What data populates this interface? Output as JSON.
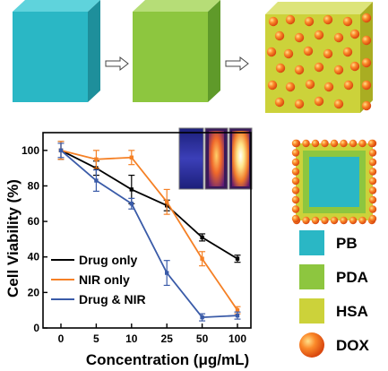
{
  "colors": {
    "pb": "#2ab7c5",
    "pda": "#8dc63f",
    "hsa": "#ccd23a",
    "dox": "#f26a1b",
    "drug_only": "#000000",
    "nir_only": "#f58025",
    "drug_nir": "#3a5ba8"
  },
  "legend_key": [
    {
      "label": "PB",
      "color": "#2ab7c5",
      "shape": "square"
    },
    {
      "label": "PDA",
      "color": "#8dc63f",
      "shape": "square"
    },
    {
      "label": "HSA",
      "color": "#ccd23a",
      "shape": "square"
    },
    {
      "label": "DOX",
      "color": "#f26a1b",
      "shape": "sphere"
    }
  ],
  "chart_data": {
    "type": "line",
    "xlabel": "Concentration (μg/mL)",
    "ylabel": "Cell Viability (%)",
    "categories": [
      "0",
      "5",
      "10",
      "25",
      "50",
      "100"
    ],
    "ylim": [
      0,
      110
    ],
    "yticks": [
      0,
      20,
      40,
      60,
      80,
      100
    ],
    "legend_position": "bottom-left",
    "grid": false,
    "series": [
      {
        "name": "Drug only",
        "color": "#000000",
        "values": [
          100,
          90,
          78,
          69,
          51,
          39
        ],
        "errors": [
          5,
          4,
          8,
          3,
          2,
          2
        ]
      },
      {
        "name": "NIR only",
        "color": "#f58025",
        "values": [
          100,
          95,
          96,
          71,
          39,
          10
        ],
        "errors": [
          5,
          5,
          4,
          7,
          4,
          2
        ]
      },
      {
        "name": "Drug & NIR",
        "color": "#3a5ba8",
        "values": [
          100,
          83,
          70,
          31,
          6,
          7
        ],
        "errors": [
          4,
          6,
          3,
          7,
          2,
          2
        ]
      }
    ]
  }
}
